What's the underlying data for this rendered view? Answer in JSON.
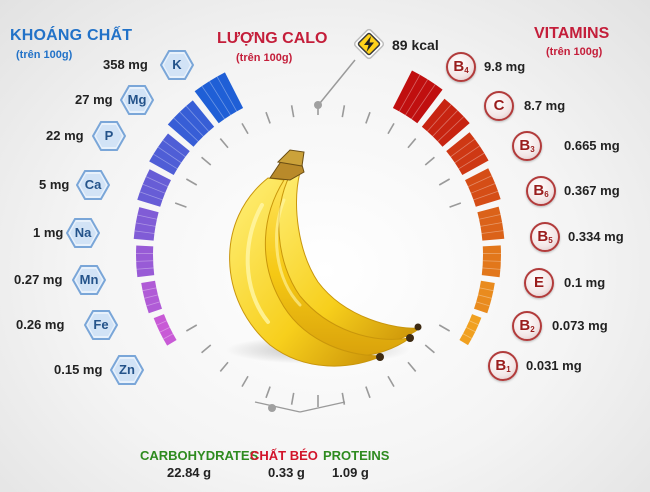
{
  "minerals": {
    "title": "KHOÁNG CHẤT",
    "subtitle": "(trên 100g)",
    "items": [
      {
        "symbol": "K",
        "value": "358 mg"
      },
      {
        "symbol": "Mg",
        "value": "27 mg"
      },
      {
        "symbol": "P",
        "value": "22 mg"
      },
      {
        "symbol": "Ca",
        "value": "5 mg"
      },
      {
        "symbol": "Na",
        "value": "1 mg"
      },
      {
        "symbol": "Mn",
        "value": "0.27 mg"
      },
      {
        "symbol": "Fe",
        "value": "0.26 mg"
      },
      {
        "symbol": "Zn",
        "value": "0.15 mg"
      }
    ]
  },
  "calories": {
    "title": "LƯỢNG CALO",
    "subtitle": "(trên 100g)",
    "value": "89 kcal",
    "icon": "lightning-icon"
  },
  "vitamins": {
    "title": "VITAMINS",
    "subtitle": "(trên 100g)",
    "items": [
      {
        "letter": "B",
        "sub": "4",
        "value": "9.8 mg"
      },
      {
        "letter": "C",
        "sub": "",
        "value": "8.7 mg"
      },
      {
        "letter": "B",
        "sub": "3",
        "value": "0.665 mg"
      },
      {
        "letter": "B",
        "sub": "6",
        "value": "0.367 mg"
      },
      {
        "letter": "B",
        "sub": "5",
        "value": "0.334 mg"
      },
      {
        "letter": "E",
        "sub": "",
        "value": "0.1 mg"
      },
      {
        "letter": "B",
        "sub": "2",
        "value": "0.073 mg"
      },
      {
        "letter": "B",
        "sub": "1",
        "value": "0.031 mg"
      }
    ]
  },
  "macros": [
    {
      "label": "CARBOHYDRATES",
      "value": "22.84 g",
      "color": "#2e8b1f"
    },
    {
      "label": "CHẤT BÉO",
      "value": "0.33 g",
      "color": "#d2142a"
    },
    {
      "label": "PROTEINS",
      "value": "1.09 g",
      "color": "#2e8b1f"
    }
  ],
  "colors": {
    "mineral_bar_top": "#1f5fd6",
    "mineral_bar_bottom": "#c85ad6",
    "vitamin_bar_top": "#c00f0f",
    "vitamin_bar_bottom": "#f0a020",
    "ring": "#9a9a9a",
    "banana": "#f7d21c"
  }
}
